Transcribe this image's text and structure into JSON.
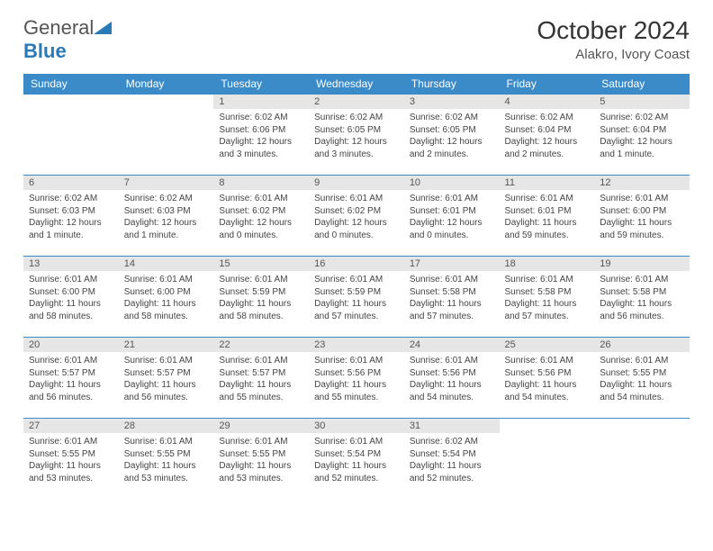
{
  "brand": {
    "part1": "General",
    "part2": "Blue"
  },
  "title": "October 2024",
  "location": "Alakro, Ivory Coast",
  "colors": {
    "header_bg": "#3b8bc9",
    "header_text": "#ffffff",
    "daynum_bg": "#e6e6e6",
    "border": "#3b8bc9",
    "brand_blue": "#2a7ab8"
  },
  "weekdays": [
    "Sunday",
    "Monday",
    "Tuesday",
    "Wednesday",
    "Thursday",
    "Friday",
    "Saturday"
  ],
  "weeks": [
    [
      null,
      null,
      {
        "n": "1",
        "sr": "6:02 AM",
        "ss": "6:06 PM",
        "dl": "12 hours and 3 minutes."
      },
      {
        "n": "2",
        "sr": "6:02 AM",
        "ss": "6:05 PM",
        "dl": "12 hours and 3 minutes."
      },
      {
        "n": "3",
        "sr": "6:02 AM",
        "ss": "6:05 PM",
        "dl": "12 hours and 2 minutes."
      },
      {
        "n": "4",
        "sr": "6:02 AM",
        "ss": "6:04 PM",
        "dl": "12 hours and 2 minutes."
      },
      {
        "n": "5",
        "sr": "6:02 AM",
        "ss": "6:04 PM",
        "dl": "12 hours and 1 minute."
      }
    ],
    [
      {
        "n": "6",
        "sr": "6:02 AM",
        "ss": "6:03 PM",
        "dl": "12 hours and 1 minute."
      },
      {
        "n": "7",
        "sr": "6:02 AM",
        "ss": "6:03 PM",
        "dl": "12 hours and 1 minute."
      },
      {
        "n": "8",
        "sr": "6:01 AM",
        "ss": "6:02 PM",
        "dl": "12 hours and 0 minutes."
      },
      {
        "n": "9",
        "sr": "6:01 AM",
        "ss": "6:02 PM",
        "dl": "12 hours and 0 minutes."
      },
      {
        "n": "10",
        "sr": "6:01 AM",
        "ss": "6:01 PM",
        "dl": "12 hours and 0 minutes."
      },
      {
        "n": "11",
        "sr": "6:01 AM",
        "ss": "6:01 PM",
        "dl": "11 hours and 59 minutes."
      },
      {
        "n": "12",
        "sr": "6:01 AM",
        "ss": "6:00 PM",
        "dl": "11 hours and 59 minutes."
      }
    ],
    [
      {
        "n": "13",
        "sr": "6:01 AM",
        "ss": "6:00 PM",
        "dl": "11 hours and 58 minutes."
      },
      {
        "n": "14",
        "sr": "6:01 AM",
        "ss": "6:00 PM",
        "dl": "11 hours and 58 minutes."
      },
      {
        "n": "15",
        "sr": "6:01 AM",
        "ss": "5:59 PM",
        "dl": "11 hours and 58 minutes."
      },
      {
        "n": "16",
        "sr": "6:01 AM",
        "ss": "5:59 PM",
        "dl": "11 hours and 57 minutes."
      },
      {
        "n": "17",
        "sr": "6:01 AM",
        "ss": "5:58 PM",
        "dl": "11 hours and 57 minutes."
      },
      {
        "n": "18",
        "sr": "6:01 AM",
        "ss": "5:58 PM",
        "dl": "11 hours and 57 minutes."
      },
      {
        "n": "19",
        "sr": "6:01 AM",
        "ss": "5:58 PM",
        "dl": "11 hours and 56 minutes."
      }
    ],
    [
      {
        "n": "20",
        "sr": "6:01 AM",
        "ss": "5:57 PM",
        "dl": "11 hours and 56 minutes."
      },
      {
        "n": "21",
        "sr": "6:01 AM",
        "ss": "5:57 PM",
        "dl": "11 hours and 56 minutes."
      },
      {
        "n": "22",
        "sr": "6:01 AM",
        "ss": "5:57 PM",
        "dl": "11 hours and 55 minutes."
      },
      {
        "n": "23",
        "sr": "6:01 AM",
        "ss": "5:56 PM",
        "dl": "11 hours and 55 minutes."
      },
      {
        "n": "24",
        "sr": "6:01 AM",
        "ss": "5:56 PM",
        "dl": "11 hours and 54 minutes."
      },
      {
        "n": "25",
        "sr": "6:01 AM",
        "ss": "5:56 PM",
        "dl": "11 hours and 54 minutes."
      },
      {
        "n": "26",
        "sr": "6:01 AM",
        "ss": "5:55 PM",
        "dl": "11 hours and 54 minutes."
      }
    ],
    [
      {
        "n": "27",
        "sr": "6:01 AM",
        "ss": "5:55 PM",
        "dl": "11 hours and 53 minutes."
      },
      {
        "n": "28",
        "sr": "6:01 AM",
        "ss": "5:55 PM",
        "dl": "11 hours and 53 minutes."
      },
      {
        "n": "29",
        "sr": "6:01 AM",
        "ss": "5:55 PM",
        "dl": "11 hours and 53 minutes."
      },
      {
        "n": "30",
        "sr": "6:01 AM",
        "ss": "5:54 PM",
        "dl": "11 hours and 52 minutes."
      },
      {
        "n": "31",
        "sr": "6:02 AM",
        "ss": "5:54 PM",
        "dl": "11 hours and 52 minutes."
      },
      null,
      null
    ]
  ],
  "labels": {
    "sunrise": "Sunrise:",
    "sunset": "Sunset:",
    "daylight": "Daylight:"
  }
}
